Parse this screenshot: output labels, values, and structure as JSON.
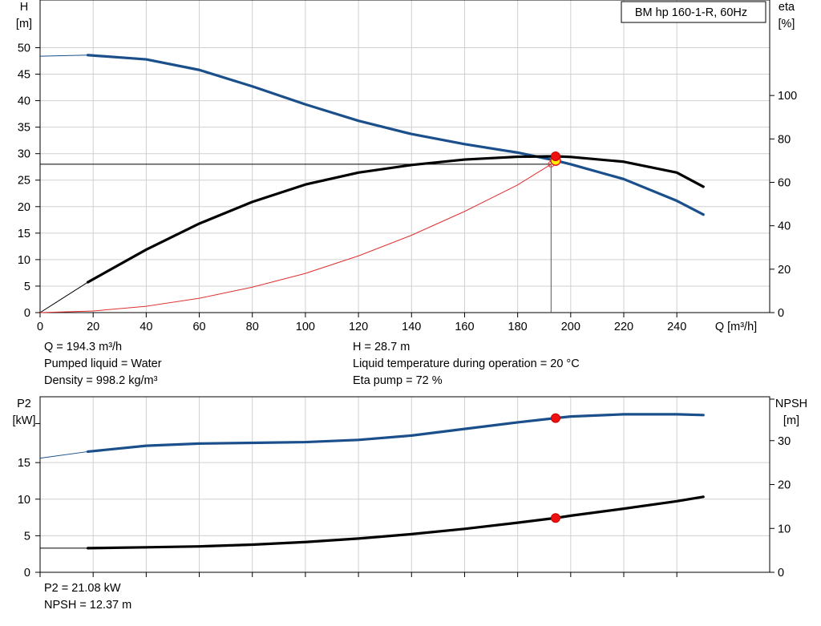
{
  "chart_data": [
    {
      "type": "line",
      "title": "BM hp 160-1-R, 60Hz",
      "xlabel": "Q [m³/h]",
      "ylabel": "H\n[m]",
      "y2label": "eta\n[%]",
      "xlim": [
        0,
        275
      ],
      "ylim": [
        0,
        59
      ],
      "y2lim": [
        0,
        144
      ],
      "xticks": [
        0,
        20,
        40,
        60,
        80,
        100,
        120,
        140,
        160,
        180,
        200,
        220,
        240
      ],
      "yticks": [
        0,
        5,
        10,
        15,
        20,
        25,
        30,
        35,
        40,
        45,
        50
      ],
      "y2ticks": [
        0,
        20,
        40,
        60,
        80,
        100
      ],
      "grid": true,
      "series": [
        {
          "name": "H",
          "axis": "left",
          "color": "#1a4f8b",
          "x": [
            0,
            18,
            40,
            60,
            80,
            100,
            120,
            140,
            160,
            180,
            194.3,
            200,
            220,
            240,
            250
          ],
          "y": [
            48.4,
            48.6,
            47.8,
            45.8,
            42.7,
            39.3,
            36.2,
            33.7,
            31.8,
            30.2,
            28.7,
            28.0,
            25.2,
            21.1,
            18.5
          ],
          "extrapolated_below": 18
        },
        {
          "name": "eta",
          "axis": "right",
          "color": "#000000",
          "x": [
            0,
            18,
            40,
            60,
            80,
            100,
            120,
            140,
            160,
            180,
            194.3,
            200,
            220,
            240,
            250
          ],
          "y": [
            0,
            14,
            29,
            41,
            51,
            59,
            64.5,
            68,
            70.5,
            71.8,
            72,
            71.7,
            69.5,
            64.5,
            58
          ],
          "extrapolated_below": 18
        },
        {
          "name": "system curve",
          "axis": "left",
          "color": "#e03030",
          "x": [
            0,
            20,
            40,
            60,
            80,
            100,
            120,
            140,
            160,
            180,
            192.6
          ],
          "y": [
            0,
            0.3,
            1.2,
            2.7,
            4.8,
            7.4,
            10.7,
            14.6,
            19.1,
            24.1,
            28.0
          ]
        }
      ],
      "operating_point": {
        "Q": 194.3,
        "H": 28.7,
        "eta": 72
      },
      "reference_lines": {
        "H": 28.0,
        "Q": 192.6
      }
    },
    {
      "type": "line",
      "xlabel": "",
      "ylabel": "P2\n[kW]",
      "y2label": "NPSH\n[m]",
      "xlim": [
        0,
        275
      ],
      "ylim": [
        0,
        24
      ],
      "y2lim": [
        0,
        40
      ],
      "yticks": [
        0,
        5,
        10,
        15
      ],
      "y2ticks": [
        0,
        10,
        20,
        30
      ],
      "grid": true,
      "series": [
        {
          "name": "P2",
          "axis": "left",
          "color": "#1a4f8b",
          "x": [
            0,
            18,
            40,
            60,
            80,
            100,
            120,
            140,
            160,
            180,
            194.3,
            200,
            220,
            240,
            250
          ],
          "y": [
            15.6,
            16.5,
            17.3,
            17.6,
            17.7,
            17.8,
            18.1,
            18.7,
            19.6,
            20.5,
            21.08,
            21.3,
            21.6,
            21.6,
            21.5
          ],
          "extrapolated_below": 18
        },
        {
          "name": "NPSH",
          "axis": "right",
          "color": "#000000",
          "x": [
            0,
            18,
            40,
            60,
            80,
            100,
            120,
            140,
            160,
            180,
            194.3,
            200,
            220,
            240,
            250
          ],
          "y": [
            5.5,
            5.5,
            5.7,
            5.9,
            6.3,
            6.9,
            7.7,
            8.7,
            9.9,
            11.3,
            12.37,
            12.9,
            14.5,
            16.2,
            17.2
          ],
          "extrapolated_below": 18
        }
      ],
      "operating_point": {
        "Q": 194.3,
        "P2": 21.08,
        "NPSH": 12.37
      }
    }
  ],
  "info_top": {
    "q": "Q = 194.3 m³/h",
    "liquid": "Pumped liquid = Water",
    "density": "Density = 998.2 kg/m³",
    "h": "H = 28.7 m",
    "temperature": "Liquid temperature during operation = 20 °C",
    "eta": "Eta pump = 72 %"
  },
  "info_bottom": {
    "p2": "P2 = 21.08 kW",
    "npsh": "NPSH = 12.37 m"
  }
}
